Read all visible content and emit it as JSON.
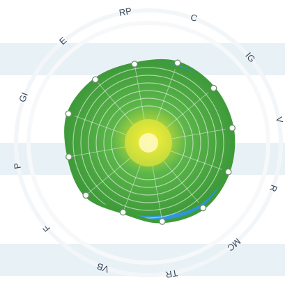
{
  "chart_data": {
    "type": "radar",
    "title": "",
    "axes": [
      "RP",
      "C",
      "IG",
      "V",
      "R",
      "MC",
      "TR",
      "VB",
      "F",
      "P",
      "GI",
      "E"
    ],
    "rlim": [
      0,
      1
    ],
    "rings": 8,
    "grid": true,
    "series": [
      {
        "name": "",
        "color": "#3f9b3a",
        "values": [
          0.94,
          0.97,
          0.99,
          1.0,
          0.99,
          0.95,
          0.87,
          0.87,
          0.96,
          0.95,
          1.0,
          0.97
        ]
      },
      {
        "name": "",
        "color": "#2d93dd",
        "values": [
          0.94,
          1.0,
          1.0,
          1.0,
          1.0,
          1.0,
          0.94,
          0.87,
          0.96,
          0.95,
          1.0,
          0.97
        ]
      }
    ],
    "colors": {
      "outline": "#3f9b3a",
      "marker_fill": "#ffffff",
      "center_glow": "#f7ef3a"
    }
  }
}
